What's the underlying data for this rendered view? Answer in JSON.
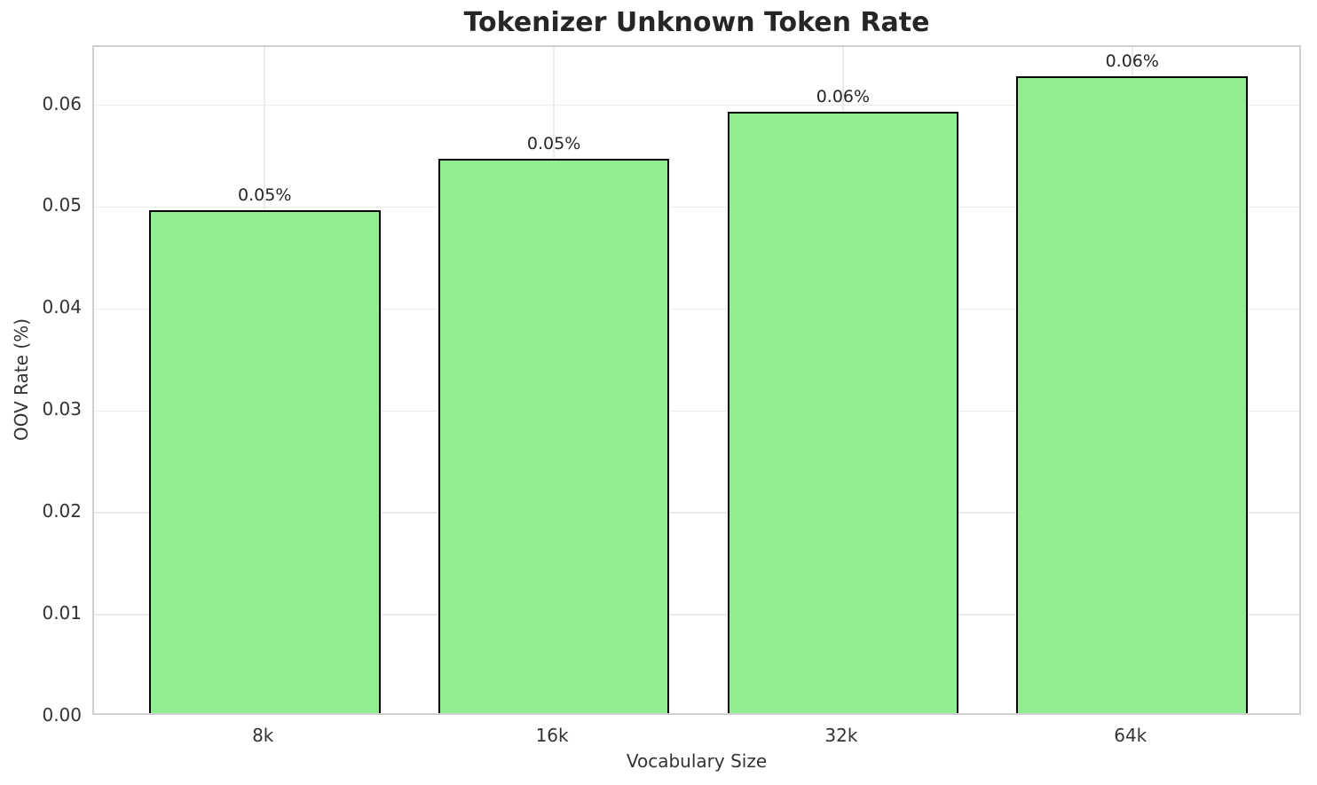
{
  "chart_data": {
    "type": "bar",
    "title": "Tokenizer Unknown Token Rate",
    "xlabel": "Vocabulary Size",
    "ylabel": "OOV Rate (%)",
    "categories": [
      "8k",
      "16k",
      "32k",
      "64k"
    ],
    "values": [
      0.0493,
      0.0544,
      0.059,
      0.0625
    ],
    "bar_labels": [
      "0.05%",
      "0.05%",
      "0.06%",
      "0.06%"
    ],
    "y_ticks": [
      0.0,
      0.01,
      0.02,
      0.03,
      0.04,
      0.05,
      0.06
    ],
    "y_tick_labels": [
      "0.00",
      "0.01",
      "0.02",
      "0.03",
      "0.04",
      "0.05",
      "0.06"
    ],
    "ylim": [
      0,
      0.0657
    ],
    "grid": true,
    "legend": null,
    "bar_color": "#90EE90",
    "bar_edge_color": "#000000",
    "grid_color": "#ececec",
    "frame_color": "#cfcfcf",
    "text_color": "#262626"
  }
}
